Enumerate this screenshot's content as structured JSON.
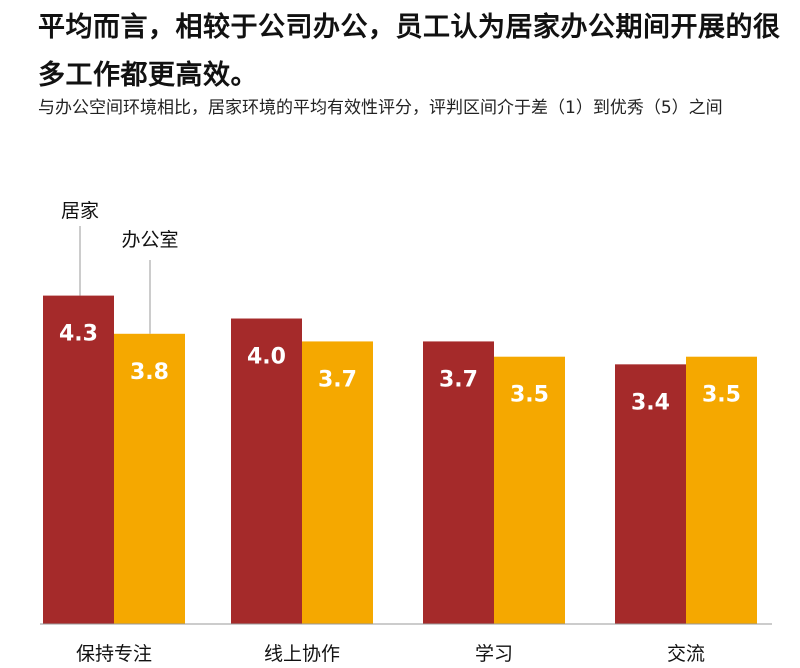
{
  "title": "平均而言，相较于公司办公，员工认为居家办公期间开展的很多工作都更高效。",
  "subtitle": "与办公空间环境相比，居家环境的平均有效性评分，评判区间介于差（1）到优秀（5）之间",
  "chart_data": {
    "type": "bar",
    "categories": [
      "保持专注",
      "线上协作",
      "学习",
      "交流"
    ],
    "series": [
      {
        "name": "居家",
        "values": [
          4.3,
          4.0,
          3.7,
          3.4
        ],
        "color": "#a52a2a"
      },
      {
        "name": "办公室",
        "values": [
          3.8,
          3.7,
          3.5,
          3.5
        ],
        "color": "#f5a800"
      }
    ],
    "ylim": [
      0,
      4.74
    ],
    "grid": false,
    "legend": "labels above first bar pair",
    "value_labels": [
      "4.3",
      "3.8",
      "4.0",
      "3.7",
      "3.7",
      "3.5",
      "3.4",
      "3.5"
    ]
  }
}
